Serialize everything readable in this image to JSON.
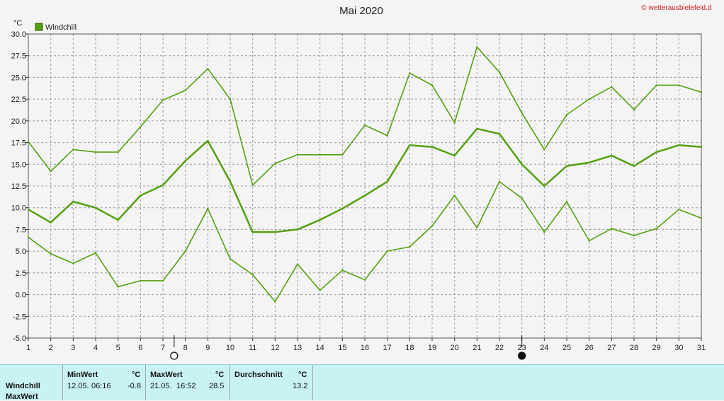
{
  "title": "Mai 2020",
  "copyright": "© wetterausbielefeld.de",
  "colors": {
    "series": "#55a011",
    "grid": "#9a9a9a",
    "plot_bg": "#f4f4f4",
    "stats_bg": "#c9f2f4"
  },
  "moon": {
    "full_day": 7.5,
    "new_day": 23,
    "full_icon": "full-moon-icon",
    "new_icon": "new-moon-icon"
  },
  "chart_data": {
    "type": "line",
    "title": "Mai 2020",
    "xlabel": "",
    "ylabel": "°C",
    "xlim": [
      1,
      31
    ],
    "ylim": [
      -5,
      30
    ],
    "x": [
      1,
      2,
      3,
      4,
      5,
      6,
      7,
      8,
      9,
      10,
      11,
      12,
      13,
      14,
      15,
      16,
      17,
      18,
      19,
      20,
      21,
      22,
      23,
      24,
      25,
      26,
      27,
      28,
      29,
      30,
      31
    ],
    "x_ticks": [
      1,
      2,
      3,
      4,
      5,
      6,
      7,
      8,
      9,
      10,
      11,
      12,
      13,
      14,
      15,
      16,
      17,
      18,
      19,
      20,
      21,
      22,
      23,
      24,
      25,
      26,
      27,
      28,
      29,
      30,
      31
    ],
    "y_ticks": [
      -5.0,
      -2.5,
      0.0,
      2.5,
      5.0,
      7.5,
      10.0,
      12.5,
      15.0,
      17.5,
      20.0,
      22.5,
      25.0,
      27.5,
      30.0
    ],
    "y_tick_labels": [
      "-5.0",
      "-2.5",
      "0.0",
      "2.5",
      "5.0",
      "7.5",
      "10.0",
      "12.5",
      "15.0",
      "17.5",
      "20.0",
      "22.5",
      "25.0",
      "27.5",
      "30.0"
    ],
    "grid": true,
    "legend": {
      "position": "top-left",
      "entries": [
        "Windchill"
      ]
    },
    "series": [
      {
        "name": "Windchill",
        "role": "max",
        "values": [
          17.6,
          14.2,
          16.7,
          16.4,
          16.4,
          19.3,
          22.4,
          23.5,
          26.0,
          22.5,
          12.6,
          15.1,
          16.1,
          16.1,
          16.1,
          19.5,
          18.3,
          25.5,
          24.1,
          19.8,
          28.5,
          25.6,
          20.9,
          16.7,
          20.7,
          22.5,
          23.9,
          21.3,
          24.1,
          24.1,
          23.3
        ]
      },
      {
        "name": "Windchill",
        "role": "mean",
        "values": [
          9.8,
          8.3,
          10.7,
          10.0,
          8.6,
          11.4,
          12.6,
          15.4,
          17.7,
          13.0,
          7.2,
          7.2,
          7.5,
          8.6,
          9.9,
          11.4,
          13.0,
          17.2,
          17.0,
          16.0,
          19.1,
          18.5,
          15.0,
          12.5,
          14.8,
          15.2,
          16.0,
          14.8,
          16.4,
          17.2,
          17.0
        ]
      },
      {
        "name": "Windchill",
        "role": "min",
        "values": [
          6.6,
          4.7,
          3.6,
          4.8,
          0.9,
          1.6,
          1.6,
          5.0,
          9.9,
          4.1,
          2.3,
          -0.8,
          3.5,
          0.5,
          2.8,
          1.7,
          5.0,
          5.5,
          7.9,
          11.4,
          7.7,
          13.0,
          11.1,
          7.2,
          10.7,
          6.2,
          7.6,
          6.8,
          7.6,
          9.8,
          8.8
        ]
      }
    ]
  },
  "stats": {
    "row_label_1": "Windchill",
    "row_label_2": "MaxWert",
    "min_header": "MinWert",
    "max_header": "MaxWert",
    "avg_header": "Durchschnitt",
    "unit": "°C",
    "min_date": "12.05.",
    "min_time": "06:16",
    "min_value": "-0.8",
    "max_date": "21.05.",
    "max_time": "16:52",
    "max_value": "28.5",
    "avg_value": "13.2"
  }
}
